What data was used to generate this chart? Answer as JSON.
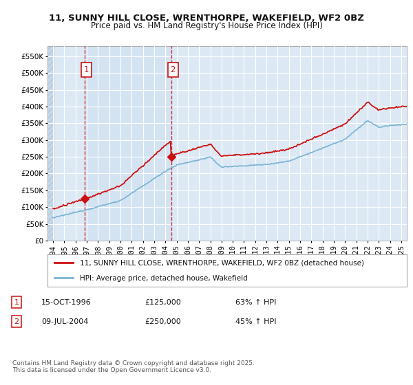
{
  "title_line1": "11, SUNNY HILL CLOSE, WRENTHORPE, WAKEFIELD, WF2 0BZ",
  "title_line2": "Price paid vs. HM Land Registry's House Price Index (HPI)",
  "background_color": "#ffffff",
  "plot_bg_color": "#dce9f5",
  "grid_color": "#ffffff",
  "sale1_date_x": 1996.79,
  "sale1_price": 125000,
  "sale2_date_x": 2004.52,
  "sale2_price": 250000,
  "legend_label_red": "11, SUNNY HILL CLOSE, WRENTHORPE, WAKEFIELD, WF2 0BZ (detached house)",
  "legend_label_blue": "HPI: Average price, detached house, Wakefield",
  "annotation1_label": "1",
  "annotation1_date": "15-OCT-1996",
  "annotation1_price": "£125,000",
  "annotation1_hpi": "63% ↑ HPI",
  "annotation2_label": "2",
  "annotation2_date": "09-JUL-2004",
  "annotation2_price": "£250,000",
  "annotation2_hpi": "45% ↑ HPI",
  "footnote": "Contains HM Land Registry data © Crown copyright and database right 2025.\nThis data is licensed under the Open Government Licence v3.0.",
  "ylim_min": 0,
  "ylim_max": 580000,
  "xlim_min": 1993.5,
  "xlim_max": 2025.5
}
